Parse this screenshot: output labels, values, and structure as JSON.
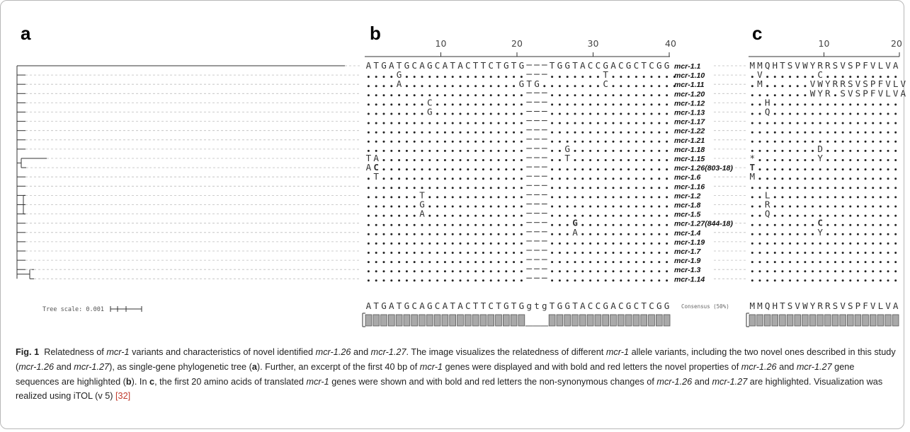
{
  "panels": {
    "a": "a",
    "b": "b",
    "c": "c"
  },
  "axis_b_ticks": [
    "10",
    "20",
    "30",
    "40"
  ],
  "axis_c_ticks": [
    "10",
    "20"
  ],
  "tree_scale_label": "Tree scale: 0.001",
  "consensus_label": "Consensus (50%)",
  "nt_reference": "ATGATGCAGCATACTTCTGTG---TGGTACCGACGCTCGG",
  "nt_consensus": "ATGATGCAGCATACTTCTGTGgtgTGGTACCGACGCTCGG",
  "aa_reference": "MMQHTSVWYRRSVSPFVLVA",
  "aa_consensus": "MMQHTSVWYRRSVSPFVLVA",
  "highlight_color": "#e8262b",
  "rows": [
    {
      "allele": "mcr-1.1",
      "nt": "ATGATGCAGCATACTTCTGTG---TGGTACCGACGCTCGG",
      "aa": "MMQHTSVWYRRSVSPFVLVA"
    },
    {
      "allele": "mcr-1.10",
      "nt": "....G................---.......T.........",
      "aa": ".V.......C.........."
    },
    {
      "allele": "mcr-1.11",
      "nt": "....A...............GTG........C.........",
      "aa": ".M......VWYRRSVSPFVLV"
    },
    {
      "allele": "mcr-1.20",
      "nt": ".....................---................",
      "aa": "........WYR.SVSPFVLVA"
    },
    {
      "allele": "mcr-1.12",
      "nt": "........C............---................",
      "aa": "..H................."
    },
    {
      "allele": "mcr-1.13",
      "nt": "........G............---................",
      "aa": "..Q................."
    },
    {
      "allele": "mcr-1.17",
      "nt": ".....................---................",
      "aa": "...................."
    },
    {
      "allele": "mcr-1.22",
      "nt": ".....................---................",
      "aa": "...................."
    },
    {
      "allele": "mcr-1.21",
      "nt": ".....................---................",
      "aa": "...................."
    },
    {
      "allele": "mcr-1.18",
      "nt": ".....................---..G.............",
      "aa": ".........D.........."
    },
    {
      "allele": "mcr-1.15",
      "nt": "TA...................---..T.............",
      "aa": "*........Y.........."
    },
    {
      "allele": "mcr-1.26(803-18)",
      "nt": "AC...................---................",
      "aa": "T..................."
    },
    {
      "allele": "mcr-1.6",
      "nt": ".T...................---................",
      "aa": "M..................."
    },
    {
      "allele": "mcr-1.16",
      "nt": ".....................---................",
      "aa": "...................."
    },
    {
      "allele": "mcr-1.2",
      "nt": ".......T.............---................",
      "aa": "..L................."
    },
    {
      "allele": "mcr-1.8",
      "nt": ".......G.............---................",
      "aa": "..R................."
    },
    {
      "allele": "mcr-1.5",
      "nt": ".......A.............---................",
      "aa": "..Q................."
    },
    {
      "allele": "mcr-1.27(844-18)",
      "nt": ".....................---...G............",
      "aa": ".........C.........."
    },
    {
      "allele": "mcr-1.4",
      "nt": ".....................---...A............",
      "aa": ".........Y.........."
    },
    {
      "allele": "mcr-1.19",
      "nt": ".....................---................",
      "aa": "...................."
    },
    {
      "allele": "mcr-1.7",
      "nt": ".....................---................",
      "aa": "...................."
    },
    {
      "allele": "mcr-1.9",
      "nt": ".....................---................",
      "aa": "...................."
    },
    {
      "allele": "mcr-1.3",
      "nt": ".....................---................",
      "aa": "...................."
    },
    {
      "allele": "mcr-1.14",
      "nt": ".....................---................",
      "aa": "...................."
    }
  ],
  "caption": {
    "fig_label": "Fig. 1",
    "text": "Relatedness of mcr-1 variants and characteristics of novel identified mcr-1.26 and mcr-1.27. The image visualizes the relatedness of different mcr-1 allele variants, including the two novel ones described in this study (mcr-1.26 and mcr-1.27), as single-gene phylogenetic tree (a). Further, an excerpt of the first 40 bp of mcr-1 genes were displayed and with bold and red letters the novel properties of mcr-1.26 and mcr-1.27 gene sequences are highlighted (b). In c, the first 20 amino acids of translated mcr-1 genes were shown and with bold and red letters the non-synonymous changes of mcr-1.26 and mcr-1.27 are highlighted. Visualization was realized using iTOL (v 5) [32]"
  }
}
